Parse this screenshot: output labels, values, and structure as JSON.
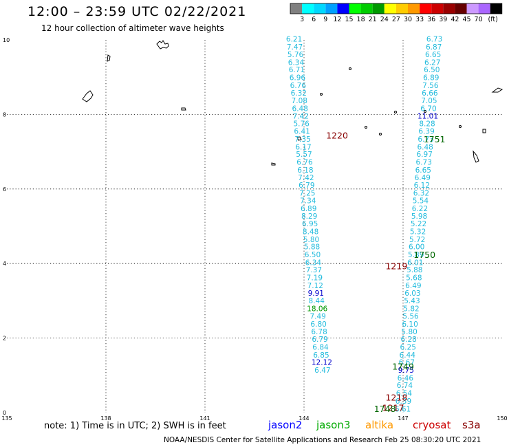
{
  "title": "12:00 – 23:59 UTC 02/22/2021",
  "subtitle": "12 hour collection of altimeter wave heights",
  "footnote": "note:  1) Time is in UTC; 2) SWH is in feet",
  "credit": "NOAA/NESDIS Center for Satellite Applications and Research    Feb 25 08:30:20 UTC 2021",
  "satellites": [
    {
      "name": "jason2",
      "color": "#0000ff"
    },
    {
      "name": "jason3",
      "color": "#00aa00"
    },
    {
      "name": "altika",
      "color": "#ff9900"
    },
    {
      "name": "cryosat",
      "color": "#cc0000"
    },
    {
      "name": "s3a",
      "color": "#880000"
    }
  ],
  "colorbar": {
    "unit_label": "(ft)",
    "labels": [
      "3",
      "6",
      "9",
      "12",
      "15",
      "18",
      "21",
      "24",
      "27",
      "30",
      "33",
      "36",
      "39",
      "42",
      "45",
      "70"
    ],
    "colors": [
      "#808080",
      "#00ffff",
      "#00d8ff",
      "#00a0ff",
      "#0000ff",
      "#00ff00",
      "#00cc00",
      "#009900",
      "#ffff00",
      "#ffcc00",
      "#ff9900",
      "#ff0000",
      "#cc0000",
      "#990000",
      "#660000",
      "#cc99ff",
      "#aa66ff",
      "#000000"
    ]
  },
  "chart_data": {
    "type": "scatter",
    "xlim": [
      135,
      150
    ],
    "ylim": [
      0,
      10
    ],
    "x_ticks": [
      "135",
      "138",
      "141",
      "144",
      "147",
      "150"
    ],
    "y_ticks": [
      "0",
      "2",
      "4",
      "6",
      "8",
      "10"
    ],
    "grid": true,
    "time_labels": [
      {
        "text": "1220",
        "x": 145.0,
        "y": 7.35,
        "color": "#880000"
      },
      {
        "text": "1751",
        "x": 147.95,
        "y": 7.25,
        "color": "#006600"
      },
      {
        "text": "1750",
        "x": 147.65,
        "y": 4.15,
        "color": "#006600"
      },
      {
        "text": "1219",
        "x": 146.8,
        "y": 3.85,
        "color": "#880000"
      },
      {
        "text": "1749",
        "x": 147.0,
        "y": 1.15,
        "color": "#006600"
      },
      {
        "text": "1218",
        "x": 146.8,
        "y": 0.32,
        "color": "#880000"
      },
      {
        "text": "1217",
        "x": 146.7,
        "y": 0.05,
        "color": "#880000"
      },
      {
        "text": "1748",
        "x": 146.45,
        "y": 0.02,
        "color": "#006600"
      }
    ],
    "series": [
      {
        "name": "s3a",
        "color": "#22bbdd",
        "points": [
          {
            "x": 143.7,
            "y": 9.95,
            "v": "6.21"
          },
          {
            "x": 143.72,
            "y": 9.74,
            "v": "7.47"
          },
          {
            "x": 143.74,
            "y": 9.54,
            "v": "5.76"
          },
          {
            "x": 143.76,
            "y": 9.33,
            "v": "6.34"
          },
          {
            "x": 143.78,
            "y": 9.13,
            "v": "6.71"
          },
          {
            "x": 143.8,
            "y": 8.92,
            "v": "6.96"
          },
          {
            "x": 143.82,
            "y": 8.71,
            "v": "6.76"
          },
          {
            "x": 143.84,
            "y": 8.51,
            "v": "6.32"
          },
          {
            "x": 143.86,
            "y": 8.3,
            "v": "7.08"
          },
          {
            "x": 143.88,
            "y": 8.09,
            "v": "6.48"
          },
          {
            "x": 143.9,
            "y": 7.89,
            "v": "7.42"
          },
          {
            "x": 143.92,
            "y": 7.68,
            "v": "5.76"
          },
          {
            "x": 143.94,
            "y": 7.48,
            "v": "6.41"
          },
          {
            "x": 143.96,
            "y": 7.27,
            "v": "7.35"
          },
          {
            "x": 143.98,
            "y": 7.06,
            "v": "6.17"
          },
          {
            "x": 144.0,
            "y": 6.86,
            "v": "5.57"
          },
          {
            "x": 144.02,
            "y": 6.65,
            "v": "6.76"
          },
          {
            "x": 144.04,
            "y": 6.44,
            "v": "6.18"
          },
          {
            "x": 144.06,
            "y": 6.24,
            "v": "7.42"
          },
          {
            "x": 144.08,
            "y": 6.03,
            "v": "6.79"
          },
          {
            "x": 144.1,
            "y": 5.82,
            "v": "7.25"
          },
          {
            "x": 144.12,
            "y": 5.62,
            "v": "7.34"
          },
          {
            "x": 144.14,
            "y": 5.41,
            "v": "6.89"
          },
          {
            "x": 144.16,
            "y": 5.2,
            "v": "8.29"
          },
          {
            "x": 144.18,
            "y": 5.0,
            "v": "6.95"
          },
          {
            "x": 144.2,
            "y": 4.79,
            "v": "8.48"
          },
          {
            "x": 144.22,
            "y": 4.58,
            "v": "5.80"
          },
          {
            "x": 144.24,
            "y": 4.38,
            "v": "5.88"
          },
          {
            "x": 144.26,
            "y": 4.17,
            "v": "6.50"
          },
          {
            "x": 144.28,
            "y": 3.96,
            "v": "6.34"
          },
          {
            "x": 144.3,
            "y": 3.76,
            "v": "7.37"
          },
          {
            "x": 144.32,
            "y": 3.55,
            "v": "7.19"
          },
          {
            "x": 144.34,
            "y": 3.34,
            "v": "7.12"
          },
          {
            "x": 144.36,
            "y": 3.14,
            "v": "9.91"
          },
          {
            "x": 144.38,
            "y": 2.93,
            "v": "8.44"
          },
          {
            "x": 144.4,
            "y": 2.72,
            "v": "18.06"
          },
          {
            "x": 144.42,
            "y": 2.52,
            "v": "7.49"
          },
          {
            "x": 144.44,
            "y": 2.31,
            "v": "6.80"
          },
          {
            "x": 144.46,
            "y": 2.1,
            "v": "6.78"
          },
          {
            "x": 144.48,
            "y": 1.9,
            "v": "6.79"
          },
          {
            "x": 144.5,
            "y": 1.69,
            "v": "6.84"
          },
          {
            "x": 144.52,
            "y": 1.48,
            "v": "6.85"
          },
          {
            "x": 144.54,
            "y": 1.28,
            "v": "12.12"
          },
          {
            "x": 144.56,
            "y": 1.07,
            "v": "6.47"
          }
        ]
      },
      {
        "name": "jason3",
        "color": "#22bbdd",
        "points": [
          {
            "x": 147.95,
            "y": 9.95,
            "v": "6.73"
          },
          {
            "x": 147.93,
            "y": 9.74,
            "v": "6.87"
          },
          {
            "x": 147.91,
            "y": 9.54,
            "v": "6.65"
          },
          {
            "x": 147.89,
            "y": 9.33,
            "v": "6.27"
          },
          {
            "x": 147.87,
            "y": 9.13,
            "v": "6.50"
          },
          {
            "x": 147.85,
            "y": 8.92,
            "v": "6.89"
          },
          {
            "x": 147.83,
            "y": 8.71,
            "v": "7.56"
          },
          {
            "x": 147.81,
            "y": 8.51,
            "v": "6.66"
          },
          {
            "x": 147.79,
            "y": 8.3,
            "v": "7.05"
          },
          {
            "x": 147.77,
            "y": 8.09,
            "v": "6.70"
          },
          {
            "x": 147.75,
            "y": 7.89,
            "v": "11.01"
          },
          {
            "x": 147.73,
            "y": 7.68,
            "v": "8.28"
          },
          {
            "x": 147.71,
            "y": 7.48,
            "v": "6.39"
          },
          {
            "x": 147.69,
            "y": 7.27,
            "v": "6.73"
          },
          {
            "x": 147.67,
            "y": 7.06,
            "v": "6.48"
          },
          {
            "x": 147.65,
            "y": 6.86,
            "v": "6.97"
          },
          {
            "x": 147.63,
            "y": 6.65,
            "v": "6.73"
          },
          {
            "x": 147.61,
            "y": 6.44,
            "v": "6.65"
          },
          {
            "x": 147.59,
            "y": 6.24,
            "v": "6.49"
          },
          {
            "x": 147.57,
            "y": 6.03,
            "v": "6.12"
          },
          {
            "x": 147.55,
            "y": 5.82,
            "v": "6.32"
          },
          {
            "x": 147.53,
            "y": 5.62,
            "v": "5.54"
          },
          {
            "x": 147.51,
            "y": 5.41,
            "v": "6.22"
          },
          {
            "x": 147.49,
            "y": 5.2,
            "v": "5.98"
          },
          {
            "x": 147.47,
            "y": 5.0,
            "v": "5.22"
          },
          {
            "x": 147.45,
            "y": 4.79,
            "v": "5.32"
          },
          {
            "x": 147.43,
            "y": 4.58,
            "v": "5.72"
          },
          {
            "x": 147.41,
            "y": 4.38,
            "v": "6.00"
          },
          {
            "x": 147.39,
            "y": 4.17,
            "v": "5.89"
          },
          {
            "x": 147.37,
            "y": 3.96,
            "v": "6.01"
          },
          {
            "x": 147.35,
            "y": 3.76,
            "v": "5.88"
          },
          {
            "x": 147.33,
            "y": 3.55,
            "v": "5.68"
          },
          {
            "x": 147.31,
            "y": 3.34,
            "v": "6.49"
          },
          {
            "x": 147.29,
            "y": 3.14,
            "v": "6.03"
          },
          {
            "x": 147.27,
            "y": 2.93,
            "v": "5.43"
          },
          {
            "x": 147.25,
            "y": 2.72,
            "v": "5.82"
          },
          {
            "x": 147.23,
            "y": 2.52,
            "v": "5.56"
          },
          {
            "x": 147.21,
            "y": 2.31,
            "v": "6.10"
          },
          {
            "x": 147.19,
            "y": 2.1,
            "v": "5.80"
          },
          {
            "x": 147.17,
            "y": 1.9,
            "v": "6.28"
          },
          {
            "x": 147.15,
            "y": 1.69,
            "v": "6.25"
          },
          {
            "x": 147.13,
            "y": 1.48,
            "v": "6.44"
          },
          {
            "x": 147.11,
            "y": 1.28,
            "v": "6.67"
          },
          {
            "x": 147.09,
            "y": 1.07,
            "v": "9.75"
          },
          {
            "x": 147.07,
            "y": 0.86,
            "v": "6.46"
          },
          {
            "x": 147.05,
            "y": 0.66,
            "v": "6.74"
          },
          {
            "x": 147.03,
            "y": 0.45,
            "v": "6.54"
          },
          {
            "x": 147.01,
            "y": 0.24,
            "v": "6.39"
          },
          {
            "x": 146.99,
            "y": 0.03,
            "v": "6.61"
          }
        ]
      }
    ]
  }
}
